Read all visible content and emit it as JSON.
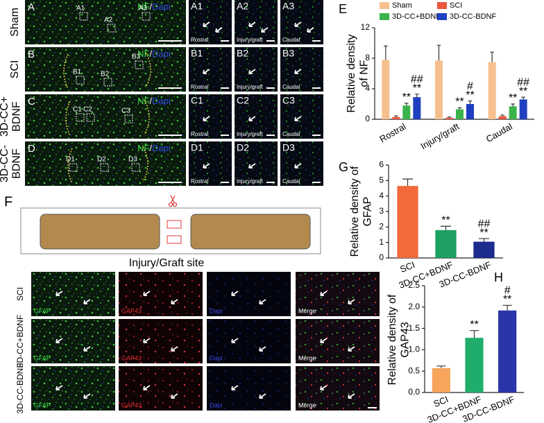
{
  "top_panels": {
    "stain": {
      "a": "NF",
      "sep": "/",
      "b": "Dapi"
    },
    "rows": [
      {
        "letter": "A",
        "label": [
          "Sham"
        ],
        "insets": [
          "A1",
          "A2",
          "A3"
        ]
      },
      {
        "letter": "B",
        "label": [
          "SCI"
        ],
        "insets": [
          "B1",
          "B2",
          "B3"
        ]
      },
      {
        "letter": "C",
        "label": [
          "3D-CC+",
          "BDNF"
        ],
        "insets": [
          "C1",
          "C2",
          "C3"
        ]
      },
      {
        "letter": "D",
        "label": [
          "3D-CC-",
          "BDNF"
        ],
        "insets": [
          "D1",
          "D2",
          "D3"
        ]
      }
    ],
    "regions": [
      "Rostral",
      "Injury/graft",
      "Caudal"
    ]
  },
  "schematic": {
    "letter": "F",
    "title": "Injury/Graft site"
  },
  "bottom_panels": {
    "rows": [
      "SCI",
      "3D-CC+BDNF",
      "3D-CC-BDNF"
    ],
    "channels": [
      "GFAP",
      "GAP43",
      "Dapi",
      "Merge"
    ]
  },
  "chart_data": [
    {
      "type": "bar",
      "panel": "E",
      "ylabel": [
        "Relative density",
        "of NF"
      ],
      "categories": [
        "Rostral",
        "Injury/graft",
        "Caudal"
      ],
      "series": [
        {
          "name": "Sham",
          "color": "#f6c08e",
          "values": [
            7.8,
            7.7,
            7.5
          ],
          "errors": [
            1.8,
            2.0,
            1.3
          ],
          "annotations": [
            null,
            null,
            null
          ]
        },
        {
          "name": "SCI",
          "color": "#e9553f",
          "values": [
            0.3,
            0.2,
            0.4
          ],
          "errors": [
            0.15,
            0.1,
            0.15
          ],
          "annotations": [
            null,
            null,
            null
          ]
        },
        {
          "name": "3D-CC+BDNF",
          "color": "#3cb34a",
          "values": [
            1.8,
            1.3,
            1.7
          ],
          "errors": [
            0.3,
            0.2,
            0.3
          ],
          "annotations": [
            [
              "**"
            ],
            [
              "**"
            ],
            [
              "**"
            ]
          ]
        },
        {
          "name": "3D-CC-BDNF",
          "color": "#1e3fc0",
          "values": [
            2.9,
            2.0,
            2.6
          ],
          "errors": [
            0.4,
            0.4,
            0.3
          ],
          "annotations": [
            [
              "##",
              "**"
            ],
            [
              "#",
              "**"
            ],
            [
              "##",
              "**"
            ]
          ]
        }
      ],
      "ylim": [
        0,
        12
      ],
      "yticks": [
        0,
        4,
        8,
        12
      ]
    },
    {
      "type": "bar",
      "panel": "G",
      "ylabel": [
        "Relative density of",
        "GFAP"
      ],
      "categories": [
        "SCI",
        "3D-CC+BDNF",
        "3D-CC-BDNF"
      ],
      "values": [
        4.65,
        1.8,
        1.05
      ],
      "errors": [
        0.45,
        0.25,
        0.2
      ],
      "colors": [
        "#f26a3b",
        "#1ea062",
        "#1b2c8e"
      ],
      "annotations": [
        null,
        [
          "**"
        ],
        [
          "##",
          "**"
        ]
      ],
      "ylim": [
        0,
        6
      ],
      "yticks": [
        0,
        1,
        2,
        3,
        4,
        5,
        6
      ]
    },
    {
      "type": "bar",
      "panel": "H",
      "ylabel": [
        "Relative density of",
        "GAP43"
      ],
      "categories": [
        "SCI",
        "3D-CC+BDNF",
        "3D-CC-BDNF"
      ],
      "values": [
        0.57,
        1.28,
        1.92
      ],
      "errors": [
        0.05,
        0.17,
        0.12
      ],
      "colors": [
        "#f7a45c",
        "#20ad6b",
        "#2b34a8"
      ],
      "annotations": [
        null,
        [
          "**"
        ],
        [
          "#",
          "**"
        ]
      ],
      "ylim": [
        0,
        2.5
      ],
      "yticks": [
        {
          "value": 0,
          "label": "0.0"
        },
        0.5,
        {
          "value": 1,
          "label": "1.0"
        },
        1.5,
        {
          "value": 2,
          "label": "2.0"
        },
        2.5
      ]
    }
  ]
}
